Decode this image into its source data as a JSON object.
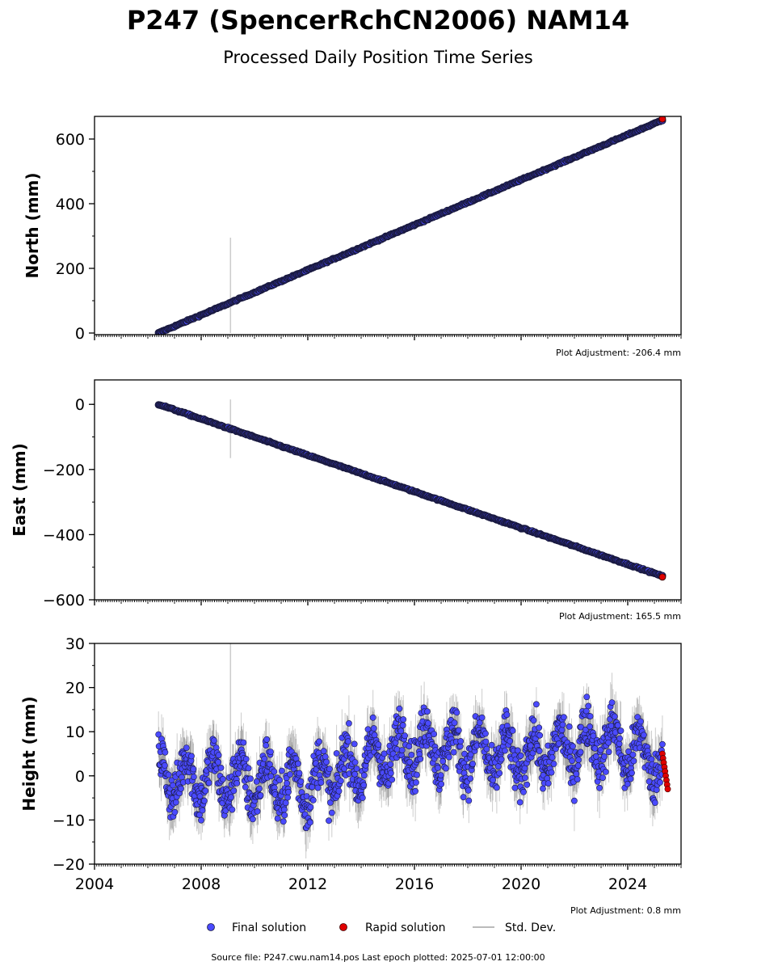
{
  "header": {
    "title": "P247 (SpencerRchCN2006) NAM14",
    "subtitle": "Processed Daily Position Time Series"
  },
  "legend": {
    "final_label": "Final solution",
    "rapid_label": "Rapid solution",
    "std_label": "Std. Dev."
  },
  "footer": {
    "source": "Source file: P247.cwu.nam14.pos  Last epoch plotted: 2025-07-01 12:00:00"
  },
  "colors": {
    "final_fill": "#4a4aff",
    "final_edge": "#1a1a40",
    "rapid": "#e00000",
    "std": "#808080"
  },
  "chart_data": [
    {
      "type": "scatter",
      "name": "north",
      "ylabel": "North (mm)",
      "adjustment": "Plot Adjustment: -206.4 mm",
      "xlim": [
        2004,
        2026
      ],
      "ylim": [
        -5,
        670
      ],
      "yticks": [
        0,
        200,
        400,
        600
      ],
      "trend": {
        "start": [
          2006.4,
          0
        ],
        "end": [
          2025.4,
          662
        ]
      },
      "noise_mm": 1.5,
      "std_spike": {
        "x": 2009.1,
        "y_low": 0,
        "y_high": 295
      },
      "series": [
        {
          "name": "Final solution",
          "x_range": [
            2006.4,
            2025.3
          ]
        },
        {
          "name": "Rapid solution",
          "x_range": [
            2025.3,
            2025.5
          ]
        }
      ]
    },
    {
      "type": "scatter",
      "name": "east",
      "ylabel": "East (mm)",
      "adjustment": "Plot Adjustment: 165.5 mm",
      "xlim": [
        2004,
        2026
      ],
      "ylim": [
        -600,
        75
      ],
      "yticks": [
        0,
        -200,
        -400,
        -600
      ],
      "ytick_labels": [
        "0",
        "−200",
        "−400",
        "−600"
      ],
      "trend": {
        "start": [
          2006.4,
          0
        ],
        "end": [
          2025.4,
          -530
        ]
      },
      "noise_mm": 1.5,
      "std_spike": {
        "x": 2009.1,
        "y_low": -165,
        "y_high": 15
      },
      "series": [
        {
          "name": "Final solution",
          "x_range": [
            2006.4,
            2025.3
          ]
        },
        {
          "name": "Rapid solution",
          "x_range": [
            2025.3,
            2025.5
          ]
        }
      ]
    },
    {
      "type": "scatter",
      "name": "height",
      "ylabel": "Height (mm)",
      "adjustment": "Plot Adjustment: 0.8 mm",
      "xlim": [
        2004,
        2026
      ],
      "ylim": [
        -20,
        30
      ],
      "yticks": [
        -20,
        -10,
        0,
        10,
        20,
        30
      ],
      "ytick_labels": [
        "−20",
        "−10",
        "0",
        "10",
        "20",
        "30"
      ],
      "xticks": [
        2004,
        2008,
        2012,
        2016,
        2020,
        2024
      ],
      "xtick_labels": [
        "2004",
        "2008",
        "2012",
        "2016",
        "2020",
        "2024"
      ],
      "seasonal": {
        "baseline": [
          [
            2006.4,
            0
          ],
          [
            2012,
            -2
          ],
          [
            2016,
            7
          ],
          [
            2020,
            4
          ],
          [
            2023,
            8
          ],
          [
            2025.4,
            3
          ]
        ],
        "amplitude_mm": 5,
        "noise_mm": 4
      },
      "std_spike": {
        "x": 2009.1,
        "y_low": -5,
        "y_high": 30
      },
      "series": [
        {
          "name": "Final solution",
          "x_range": [
            2006.4,
            2025.3
          ]
        },
        {
          "name": "Rapid solution",
          "x_range": [
            2025.3,
            2025.5
          ],
          "values": [
            5,
            4,
            3,
            2,
            1,
            0,
            -1,
            -2,
            -3
          ]
        }
      ]
    }
  ]
}
